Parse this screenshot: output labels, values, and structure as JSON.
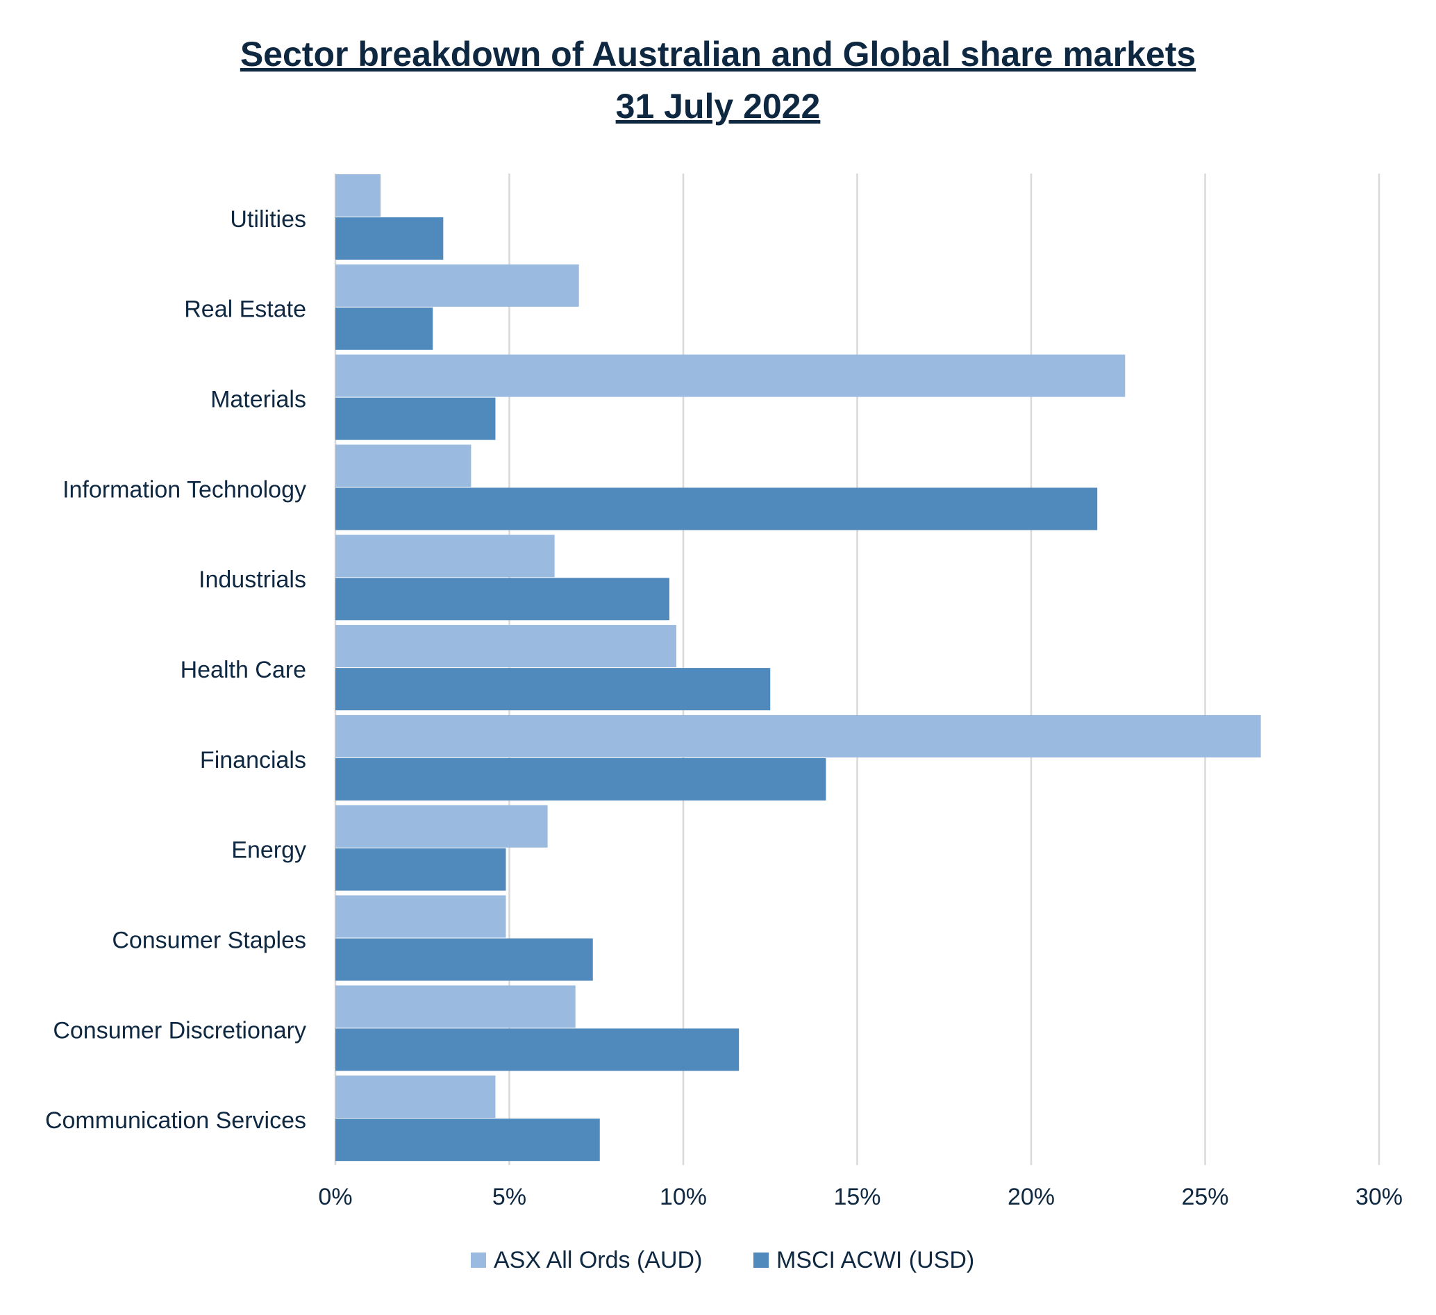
{
  "chart_data": {
    "type": "bar",
    "orientation": "horizontal",
    "title": "Sector breakdown of Australian and Global share markets",
    "subtitle": "31 July 2022",
    "categories": [
      "Utilities",
      "Real Estate",
      "Materials",
      "Information Technology",
      "Industrials",
      "Health Care",
      "Financials",
      "Energy",
      "Consumer Staples",
      "Consumer Discretionary",
      "Communication Services"
    ],
    "series": [
      {
        "name": "ASX All Ords (AUD)",
        "color": "#9abae0",
        "values": [
          1.3,
          7.0,
          22.7,
          3.9,
          6.3,
          9.8,
          26.6,
          6.1,
          4.9,
          6.9,
          4.6
        ]
      },
      {
        "name": "MSCI ACWI (USD)",
        "color": "#508abd",
        "values": [
          3.1,
          2.8,
          4.6,
          21.9,
          9.6,
          12.5,
          14.1,
          4.9,
          7.4,
          11.6,
          7.6
        ]
      }
    ],
    "xlim": [
      0,
      30
    ],
    "xticks": [
      0,
      5,
      10,
      15,
      20,
      25,
      30
    ],
    "xtick_labels": [
      "0%",
      "5%",
      "10%",
      "15%",
      "20%",
      "25%",
      "30%"
    ],
    "xlabel": "",
    "ylabel": "",
    "grid": "vertical",
    "legend_position": "bottom"
  }
}
